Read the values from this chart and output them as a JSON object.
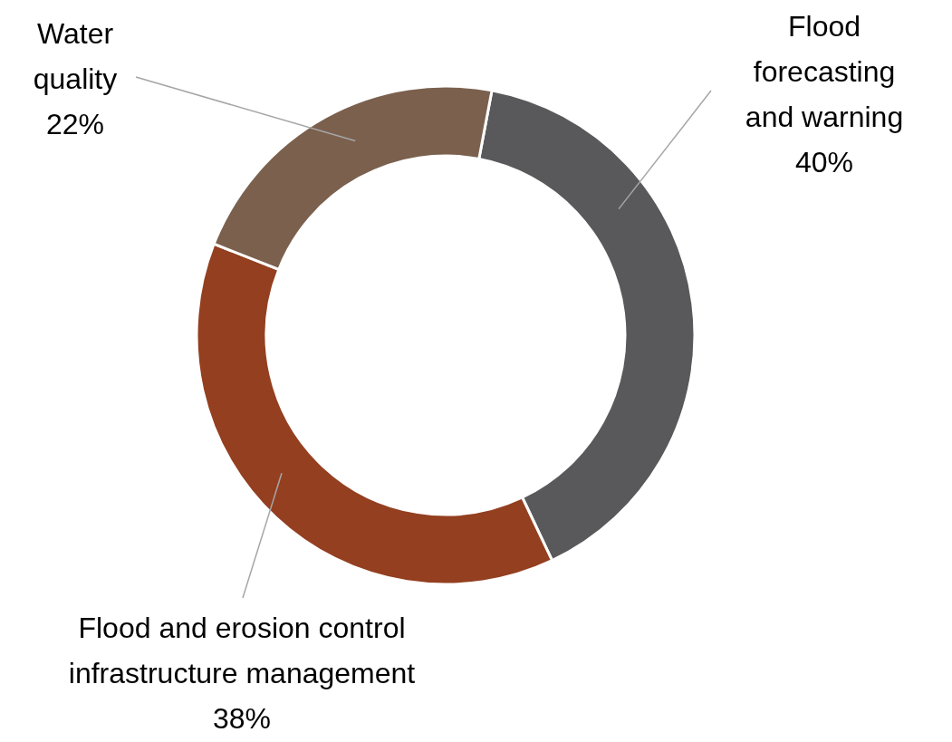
{
  "chart_data": {
    "type": "donut",
    "categories": [
      "Flood forecasting and warning",
      "Flood and erosion control infrastructure management",
      "Water quality"
    ],
    "values": [
      40,
      38,
      22
    ],
    "value_labels": [
      "40%",
      "38%",
      "22%"
    ],
    "colors": [
      "#59595b",
      "#933f20",
      "#7b604e"
    ]
  }
}
